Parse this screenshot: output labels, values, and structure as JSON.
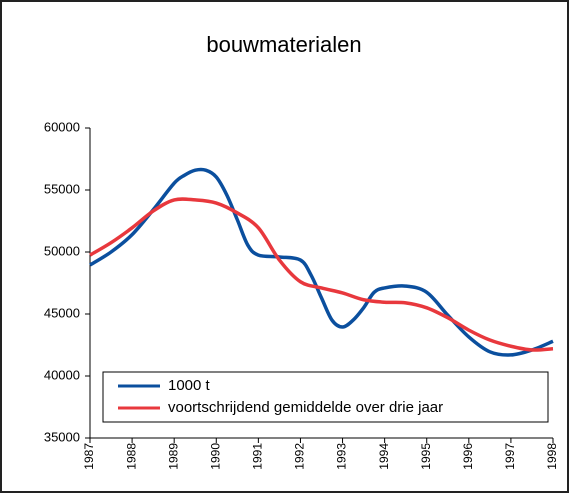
{
  "chart_data": {
    "type": "line",
    "title": "bouwmaterialen",
    "xlim": [
      1987,
      1998
    ],
    "xticks": [
      1987,
      1988,
      1989,
      1990,
      1991,
      1992,
      1993,
      1994,
      1995,
      1996,
      1997,
      1998
    ],
    "ylim": [
      35000,
      60000
    ],
    "yticks": [
      35000,
      40000,
      45000,
      50000,
      55000,
      60000
    ],
    "legend": "lower-center",
    "series": [
      {
        "name": "1000 t",
        "color": "#0b4f9e",
        "x": [
          1987,
          1987.5,
          1988,
          1988.5,
          1989,
          1989.25,
          1989.5,
          1989.75,
          1990,
          1990.25,
          1990.5,
          1990.75,
          1991,
          1991.5,
          1992,
          1992.25,
          1992.5,
          1992.75,
          1993,
          1993.25,
          1993.5,
          1993.75,
          1994,
          1994.5,
          1995,
          1995.5,
          1996,
          1996.5,
          1997,
          1997.5,
          1998
        ],
        "values": [
          48950,
          50000,
          51400,
          53400,
          55550,
          56200,
          56600,
          56600,
          56050,
          54600,
          52600,
          50550,
          49750,
          49600,
          49350,
          48150,
          46300,
          44500,
          43950,
          44500,
          45500,
          46750,
          47100,
          47250,
          46750,
          44900,
          43150,
          41950,
          41700,
          42100,
          42800
        ]
      },
      {
        "name": "voortschrijdend gemiddelde over drie jaar",
        "color": "#e8383d",
        "x": [
          1987,
          1987.5,
          1988,
          1988.5,
          1989,
          1989.5,
          1990,
          1990.5,
          1991,
          1991.5,
          1992,
          1992.5,
          1993,
          1993.5,
          1994,
          1994.5,
          1995,
          1995.5,
          1996,
          1996.5,
          1997,
          1997.5,
          1998
        ],
        "values": [
          49750,
          50750,
          51950,
          53300,
          54200,
          54200,
          53950,
          53150,
          51950,
          49350,
          47600,
          47100,
          46700,
          46150,
          45950,
          45900,
          45500,
          44700,
          43700,
          42900,
          42400,
          42100,
          42200
        ]
      }
    ]
  }
}
